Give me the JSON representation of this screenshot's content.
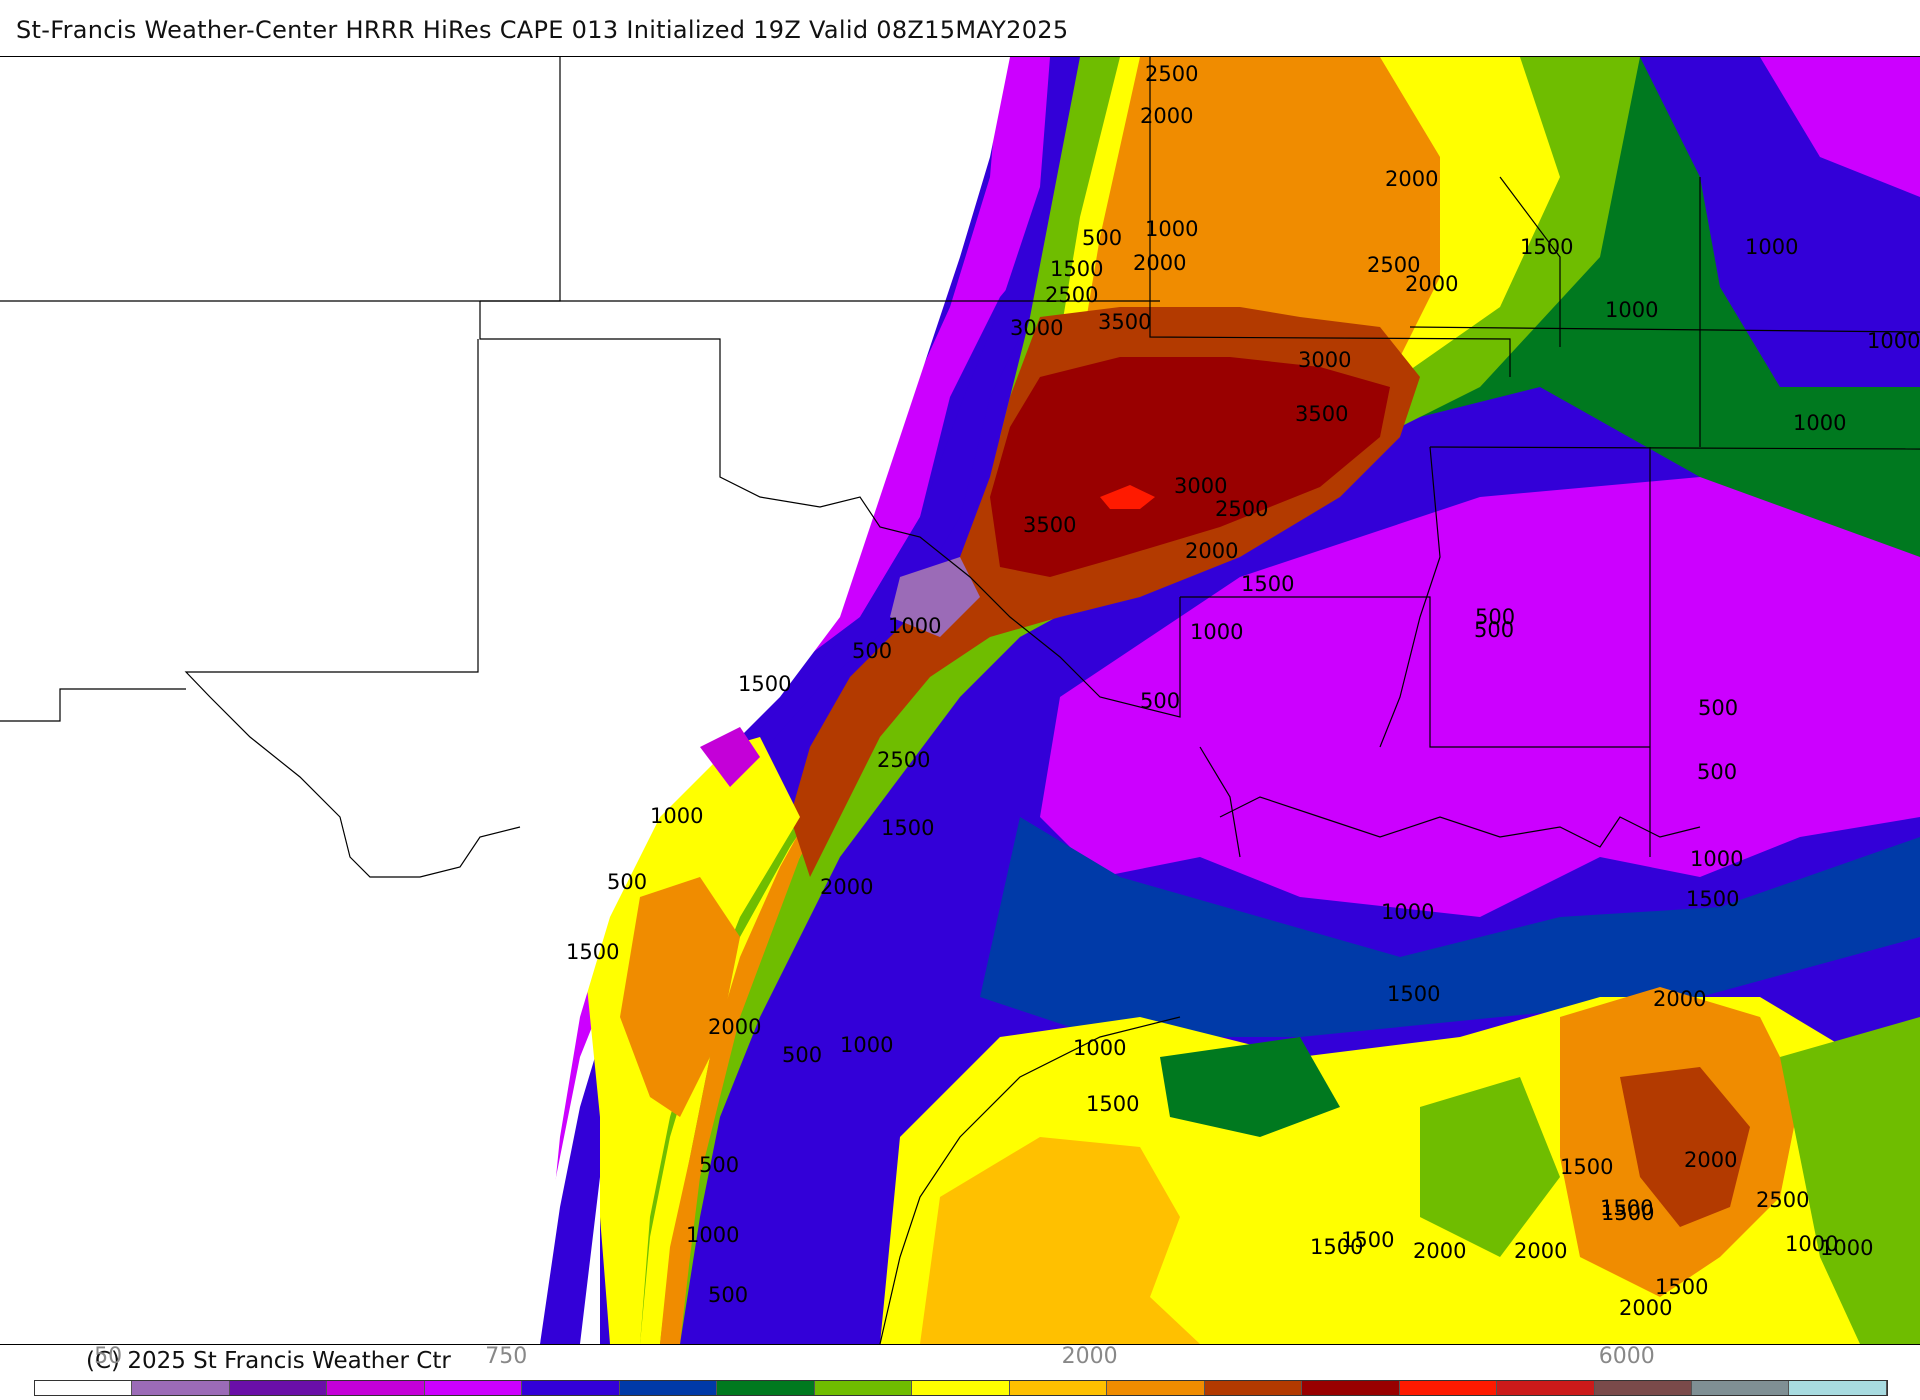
{
  "title": "St-Francis Weather-Center HRRR HiRes CAPE  013 Initialized  19Z Valid 08Z15MAY2025",
  "copyright": "(C) 2025 St Francis Weather Ctr",
  "colors": {
    "c50": "#ffffff",
    "c100": "#9b6bb7",
    "c250": "#6a0fa8",
    "c500": "#c400d8",
    "c750": "#cc00ff",
    "c1000": "#3300d8",
    "c1250": "#003aa8",
    "c1500": "#00791f",
    "c1750": "#6fbd00",
    "c2000": "#ffff00",
    "c2250": "#ffc000",
    "c2500": "#f08c00",
    "c3000": "#b33a00",
    "c3500": "#990000",
    "c4000": "#ff1a00",
    "c4500": "#cc1a1a",
    "c5000": "#7a4a4a",
    "c5500": "#7f8f94",
    "c6000": "#a8dbe0"
  },
  "colorbar": {
    "colors": [
      "#ffffff",
      "#9b6bb7",
      "#6a0fa8",
      "#c400d8",
      "#cc00ff",
      "#3300d8",
      "#003aa8",
      "#00791f",
      "#6fbd00",
      "#ffff00",
      "#ffc000",
      "#f08c00",
      "#b33a00",
      "#990000",
      "#ff1a00",
      "#cc1a1a",
      "#7a4a4a",
      "#7f8f94",
      "#a8dbe0"
    ],
    "ticks": [
      "50",
      "750",
      "2000",
      "6000"
    ]
  },
  "contour_labels": [
    {
      "text": "2500"
    },
    {
      "text": "2000"
    },
    {
      "text": "2000"
    },
    {
      "text": "1500"
    },
    {
      "text": "1000"
    },
    {
      "text": "500"
    },
    {
      "text": "1500"
    },
    {
      "text": "2000"
    },
    {
      "text": "2500"
    },
    {
      "text": "2000"
    },
    {
      "text": "2500"
    },
    {
      "text": "3000"
    },
    {
      "text": "3500"
    },
    {
      "text": "3000"
    },
    {
      "text": "3500"
    },
    {
      "text": "1000"
    },
    {
      "text": "1000"
    },
    {
      "text": "1000"
    },
    {
      "text": "1000"
    },
    {
      "text": "3000"
    },
    {
      "text": "2500"
    },
    {
      "text": "2000"
    },
    {
      "text": "3500"
    },
    {
      "text": "1500"
    },
    {
      "text": "1000"
    },
    {
      "text": "500"
    },
    {
      "text": "1000"
    },
    {
      "text": "500"
    },
    {
      "text": "1500"
    },
    {
      "text": "500"
    },
    {
      "text": "500"
    },
    {
      "text": "500"
    },
    {
      "text": "500"
    },
    {
      "text": "2500"
    },
    {
      "text": "1000"
    },
    {
      "text": "1500"
    },
    {
      "text": "500"
    },
    {
      "text": "2000"
    },
    {
      "text": "1500"
    },
    {
      "text": "1000"
    },
    {
      "text": "1500"
    },
    {
      "text": "1000"
    },
    {
      "text": "2000"
    },
    {
      "text": "1500"
    },
    {
      "text": "2000"
    },
    {
      "text": "1000"
    },
    {
      "text": "500"
    },
    {
      "text": "1000"
    },
    {
      "text": "2000"
    },
    {
      "text": "1500"
    },
    {
      "text": "1500"
    },
    {
      "text": "1000"
    },
    {
      "text": "1500"
    },
    {
      "text": "2500"
    },
    {
      "text": "1500"
    },
    {
      "text": "500"
    },
    {
      "text": "1500"
    },
    {
      "text": "1000"
    },
    {
      "text": "1500"
    },
    {
      "text": "2000"
    },
    {
      "text": "500"
    },
    {
      "text": "1500"
    },
    {
      "text": "2000"
    },
    {
      "text": "2000"
    },
    {
      "text": "1000"
    }
  ]
}
